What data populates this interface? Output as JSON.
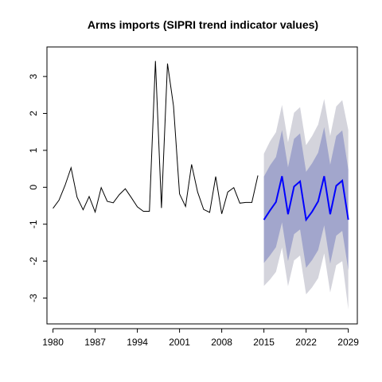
{
  "chart_data": {
    "type": "line",
    "title": "Arms imports (SIPRI trend indicator values)",
    "xlabel": "",
    "ylabel": "",
    "xlim": [
      1979,
      2030.5
    ],
    "ylim": [
      -3.7,
      3.8
    ],
    "x_ticks": [
      1980,
      1987,
      1994,
      2001,
      2008,
      2015,
      2022,
      2029
    ],
    "y_ticks": [
      -3,
      -2,
      -1,
      0,
      1,
      2,
      3
    ],
    "grid": false,
    "series": [
      {
        "kind": "history",
        "color": "#000000",
        "x": [
          1980,
          1981,
          1982,
          1983,
          1984,
          1985,
          1986,
          1987,
          1988,
          1989,
          1990,
          1991,
          1992,
          1993,
          1994,
          1995,
          1996,
          1997,
          1998,
          1999,
          2000,
          2001,
          2002,
          2003,
          2004,
          2005,
          2006,
          2007,
          2008,
          2009,
          2010,
          2011,
          2012,
          2013,
          2014
        ],
        "y": [
          -0.57,
          -0.35,
          0.05,
          0.53,
          -0.27,
          -0.61,
          -0.25,
          -0.67,
          -0.01,
          -0.38,
          -0.42,
          -0.2,
          -0.04,
          -0.28,
          -0.53,
          -0.65,
          -0.65,
          3.42,
          -0.56,
          3.35,
          2.2,
          -0.18,
          -0.52,
          0.62,
          -0.13,
          -0.6,
          -0.68,
          0.29,
          -0.72,
          -0.13,
          -0.01,
          -0.43,
          -0.41,
          -0.41,
          0.32
        ]
      },
      {
        "kind": "forecast",
        "color": "#0000ff",
        "x": [
          2015,
          2016,
          2017,
          2018,
          2019,
          2020,
          2021,
          2022,
          2023,
          2024,
          2025,
          2026,
          2027,
          2028,
          2029
        ],
        "y": [
          -0.88,
          -0.63,
          -0.4,
          0.3,
          -0.73,
          0.02,
          0.16,
          -0.88,
          -0.66,
          -0.38,
          0.3,
          -0.73,
          0.04,
          0.18,
          -0.88
        ],
        "lo80": [
          -2.05,
          -1.85,
          -1.62,
          -0.95,
          -2.0,
          -1.27,
          -1.14,
          -2.18,
          -1.97,
          -1.7,
          -1.03,
          -2.07,
          -1.31,
          -1.18,
          -2.24
        ],
        "hi80": [
          0.29,
          0.59,
          0.82,
          1.55,
          0.54,
          1.31,
          1.46,
          0.42,
          0.65,
          0.94,
          1.63,
          0.61,
          1.39,
          1.54,
          0.48
        ],
        "lo95": [
          -2.67,
          -2.5,
          -2.29,
          -1.63,
          -2.68,
          -1.98,
          -1.85,
          -2.9,
          -2.71,
          -2.46,
          -1.79,
          -2.85,
          -2.11,
          -2.0,
          -3.31
        ],
        "hi95": [
          0.91,
          1.24,
          1.49,
          2.23,
          1.22,
          2.02,
          2.17,
          1.14,
          1.39,
          1.7,
          2.39,
          1.39,
          2.19,
          2.36,
          1.55
        ]
      }
    ],
    "band_colors": {
      "band95": "#d4d4dc",
      "band80": "#a2a6cc"
    }
  }
}
